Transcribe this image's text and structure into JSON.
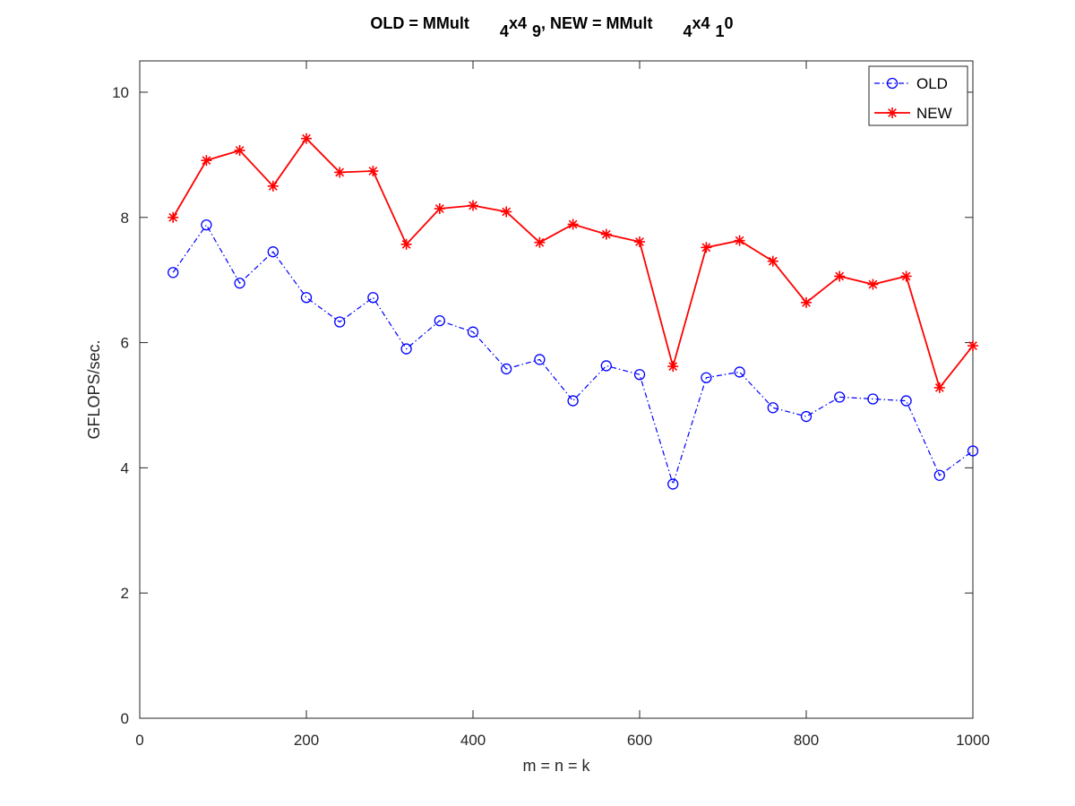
{
  "chart_data": {
    "type": "line",
    "title": {
      "a": "OLD = MMult",
      "a_sub": "4",
      "b": "x4",
      "b_sub": "9",
      "c": ", NEW = MMult",
      "c_sub": "4",
      "d": "x4",
      "d_sub": "1",
      "e": "0"
    },
    "xlabel": "m = n = k",
    "ylabel": "GFLOPS/sec.",
    "xlim": [
      0,
      1000
    ],
    "ylim": [
      0,
      10.5
    ],
    "xticks": [
      0,
      200,
      400,
      600,
      800,
      1000
    ],
    "yticks": [
      0,
      2,
      4,
      6,
      8,
      10
    ],
    "grid": false,
    "legend_position": "top-right",
    "x": [
      40,
      80,
      120,
      160,
      200,
      240,
      280,
      320,
      360,
      400,
      440,
      480,
      520,
      560,
      600,
      640,
      680,
      720,
      760,
      800,
      840,
      880,
      920,
      960,
      1000
    ],
    "series": [
      {
        "name": "OLD",
        "color": "#0000ff",
        "line_style": "dash-dot",
        "marker": "circle",
        "values": [
          7.12,
          7.88,
          6.95,
          7.45,
          6.72,
          6.33,
          6.72,
          5.9,
          6.35,
          6.17,
          5.58,
          5.73,
          5.07,
          5.63,
          5.49,
          3.74,
          5.44,
          5.53,
          4.96,
          4.82,
          5.13,
          5.1,
          5.07,
          3.88,
          4.27
        ]
      },
      {
        "name": "NEW",
        "color": "#ff0000",
        "line_style": "solid",
        "marker": "asterisk",
        "values": [
          8.0,
          8.91,
          9.07,
          8.5,
          9.26,
          8.72,
          8.74,
          7.57,
          8.14,
          8.19,
          8.09,
          7.6,
          7.89,
          7.73,
          7.61,
          5.62,
          7.52,
          7.63,
          7.3,
          6.64,
          7.06,
          6.93,
          7.06,
          5.28,
          5.95
        ]
      }
    ]
  }
}
